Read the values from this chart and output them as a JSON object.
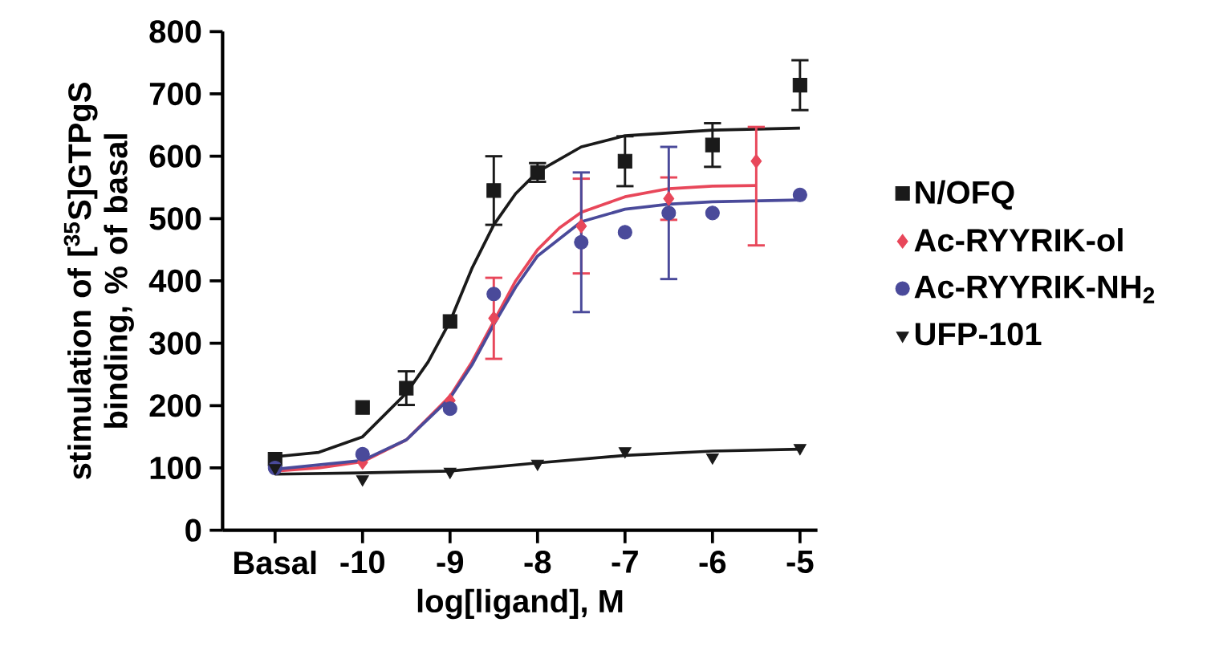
{
  "chart_data": {
    "type": "scatter",
    "xlabel": "log[ligand], M",
    "ylabel": "stimulation of [$^{35}$S]GTPgS binding, % of basal",
    "xlim": [
      -11.6,
      -4.8
    ],
    "xticks": [
      {
        "value": -11,
        "label": "Basal"
      },
      -10,
      -9,
      -8,
      -7,
      -6,
      -5
    ],
    "ylim": [
      0,
      800
    ],
    "yticks": [
      0,
      100,
      200,
      300,
      400,
      500,
      600,
      700,
      800
    ],
    "legend": "right",
    "series": [
      {
        "type": "line",
        "color": "#1a1a1a",
        "marker": "none",
        "x": [
          -11,
          -10.5,
          -10,
          -9.5,
          -9.25,
          -9,
          -8.75,
          -8.5,
          -8.25,
          -8,
          -7.5,
          -7,
          -6,
          -5
        ],
        "values": [
          118,
          125,
          150,
          220,
          270,
          335,
          420,
          490,
          540,
          575,
          615,
          633,
          642,
          645
        ]
      },
      {
        "type": "line",
        "color": "#e8475a",
        "marker": "none",
        "x": [
          -11,
          -10.5,
          -10,
          -9.5,
          -9,
          -8.75,
          -8.5,
          -8.25,
          -8,
          -7.75,
          -7.5,
          -7,
          -6.5,
          -6,
          -5.5
        ],
        "values": [
          95,
          100,
          110,
          145,
          215,
          270,
          335,
          400,
          450,
          485,
          510,
          535,
          548,
          552,
          553
        ]
      },
      {
        "type": "line",
        "color": "#4a4a9a",
        "marker": "none",
        "x": [
          -11,
          -10,
          -9.5,
          -9,
          -8.75,
          -8.5,
          -8.25,
          -8,
          -7.5,
          -7,
          -6.5,
          -6,
          -5
        ],
        "values": [
          98,
          112,
          145,
          212,
          265,
          330,
          390,
          440,
          495,
          515,
          523,
          527,
          530
        ]
      },
      {
        "type": "line",
        "color": "#1a1a1a",
        "marker": "none",
        "x": [
          -11,
          -10,
          -9,
          -8,
          -7,
          -6,
          -5
        ],
        "values": [
          90,
          92,
          95,
          108,
          120,
          127,
          130
        ]
      },
      {
        "name": "N/OFQ",
        "color": "#1a1a1a",
        "marker": "square",
        "x": [
          -11,
          -10,
          -9.5,
          -9,
          -8.5,
          -8,
          -7,
          -6,
          -5
        ],
        "values": [
          114,
          197,
          228,
          335,
          545,
          574,
          592,
          618,
          714
        ],
        "errors": [
          null,
          null,
          27,
          null,
          55,
          15,
          40,
          35,
          40
        ]
      },
      {
        "name": "Ac-RYYRIK-ol",
        "color": "#e8475a",
        "marker": "diamond",
        "x": [
          -10,
          -9,
          -8.5,
          -7.5,
          -6.5,
          -5.5
        ],
        "values": [
          109,
          208,
          340,
          488,
          532,
          592
        ],
        "errors": [
          null,
          null,
          65,
          76,
          34,
          [
            457,
            647
          ]
        ]
      },
      {
        "name": "Ac-RYYRIK-NH$_{2}$",
        "color": "#4a4a9a",
        "marker": "circle",
        "x": [
          -11,
          -10,
          -9,
          -8.5,
          -7.5,
          -7,
          -6.5,
          -6,
          -5
        ],
        "values": [
          100,
          122,
          195,
          379,
          462,
          478,
          509,
          509,
          538
        ],
        "errors": [
          null,
          null,
          null,
          null,
          112,
          null,
          106,
          null,
          null
        ]
      },
      {
        "name": "UFP-101",
        "color": "#1a1a1a",
        "marker": "triangle",
        "x": [
          -11,
          -10,
          -9,
          -8,
          -7,
          -6,
          -5
        ],
        "values": [
          100,
          82,
          94,
          107,
          127,
          117,
          132
        ]
      }
    ]
  }
}
